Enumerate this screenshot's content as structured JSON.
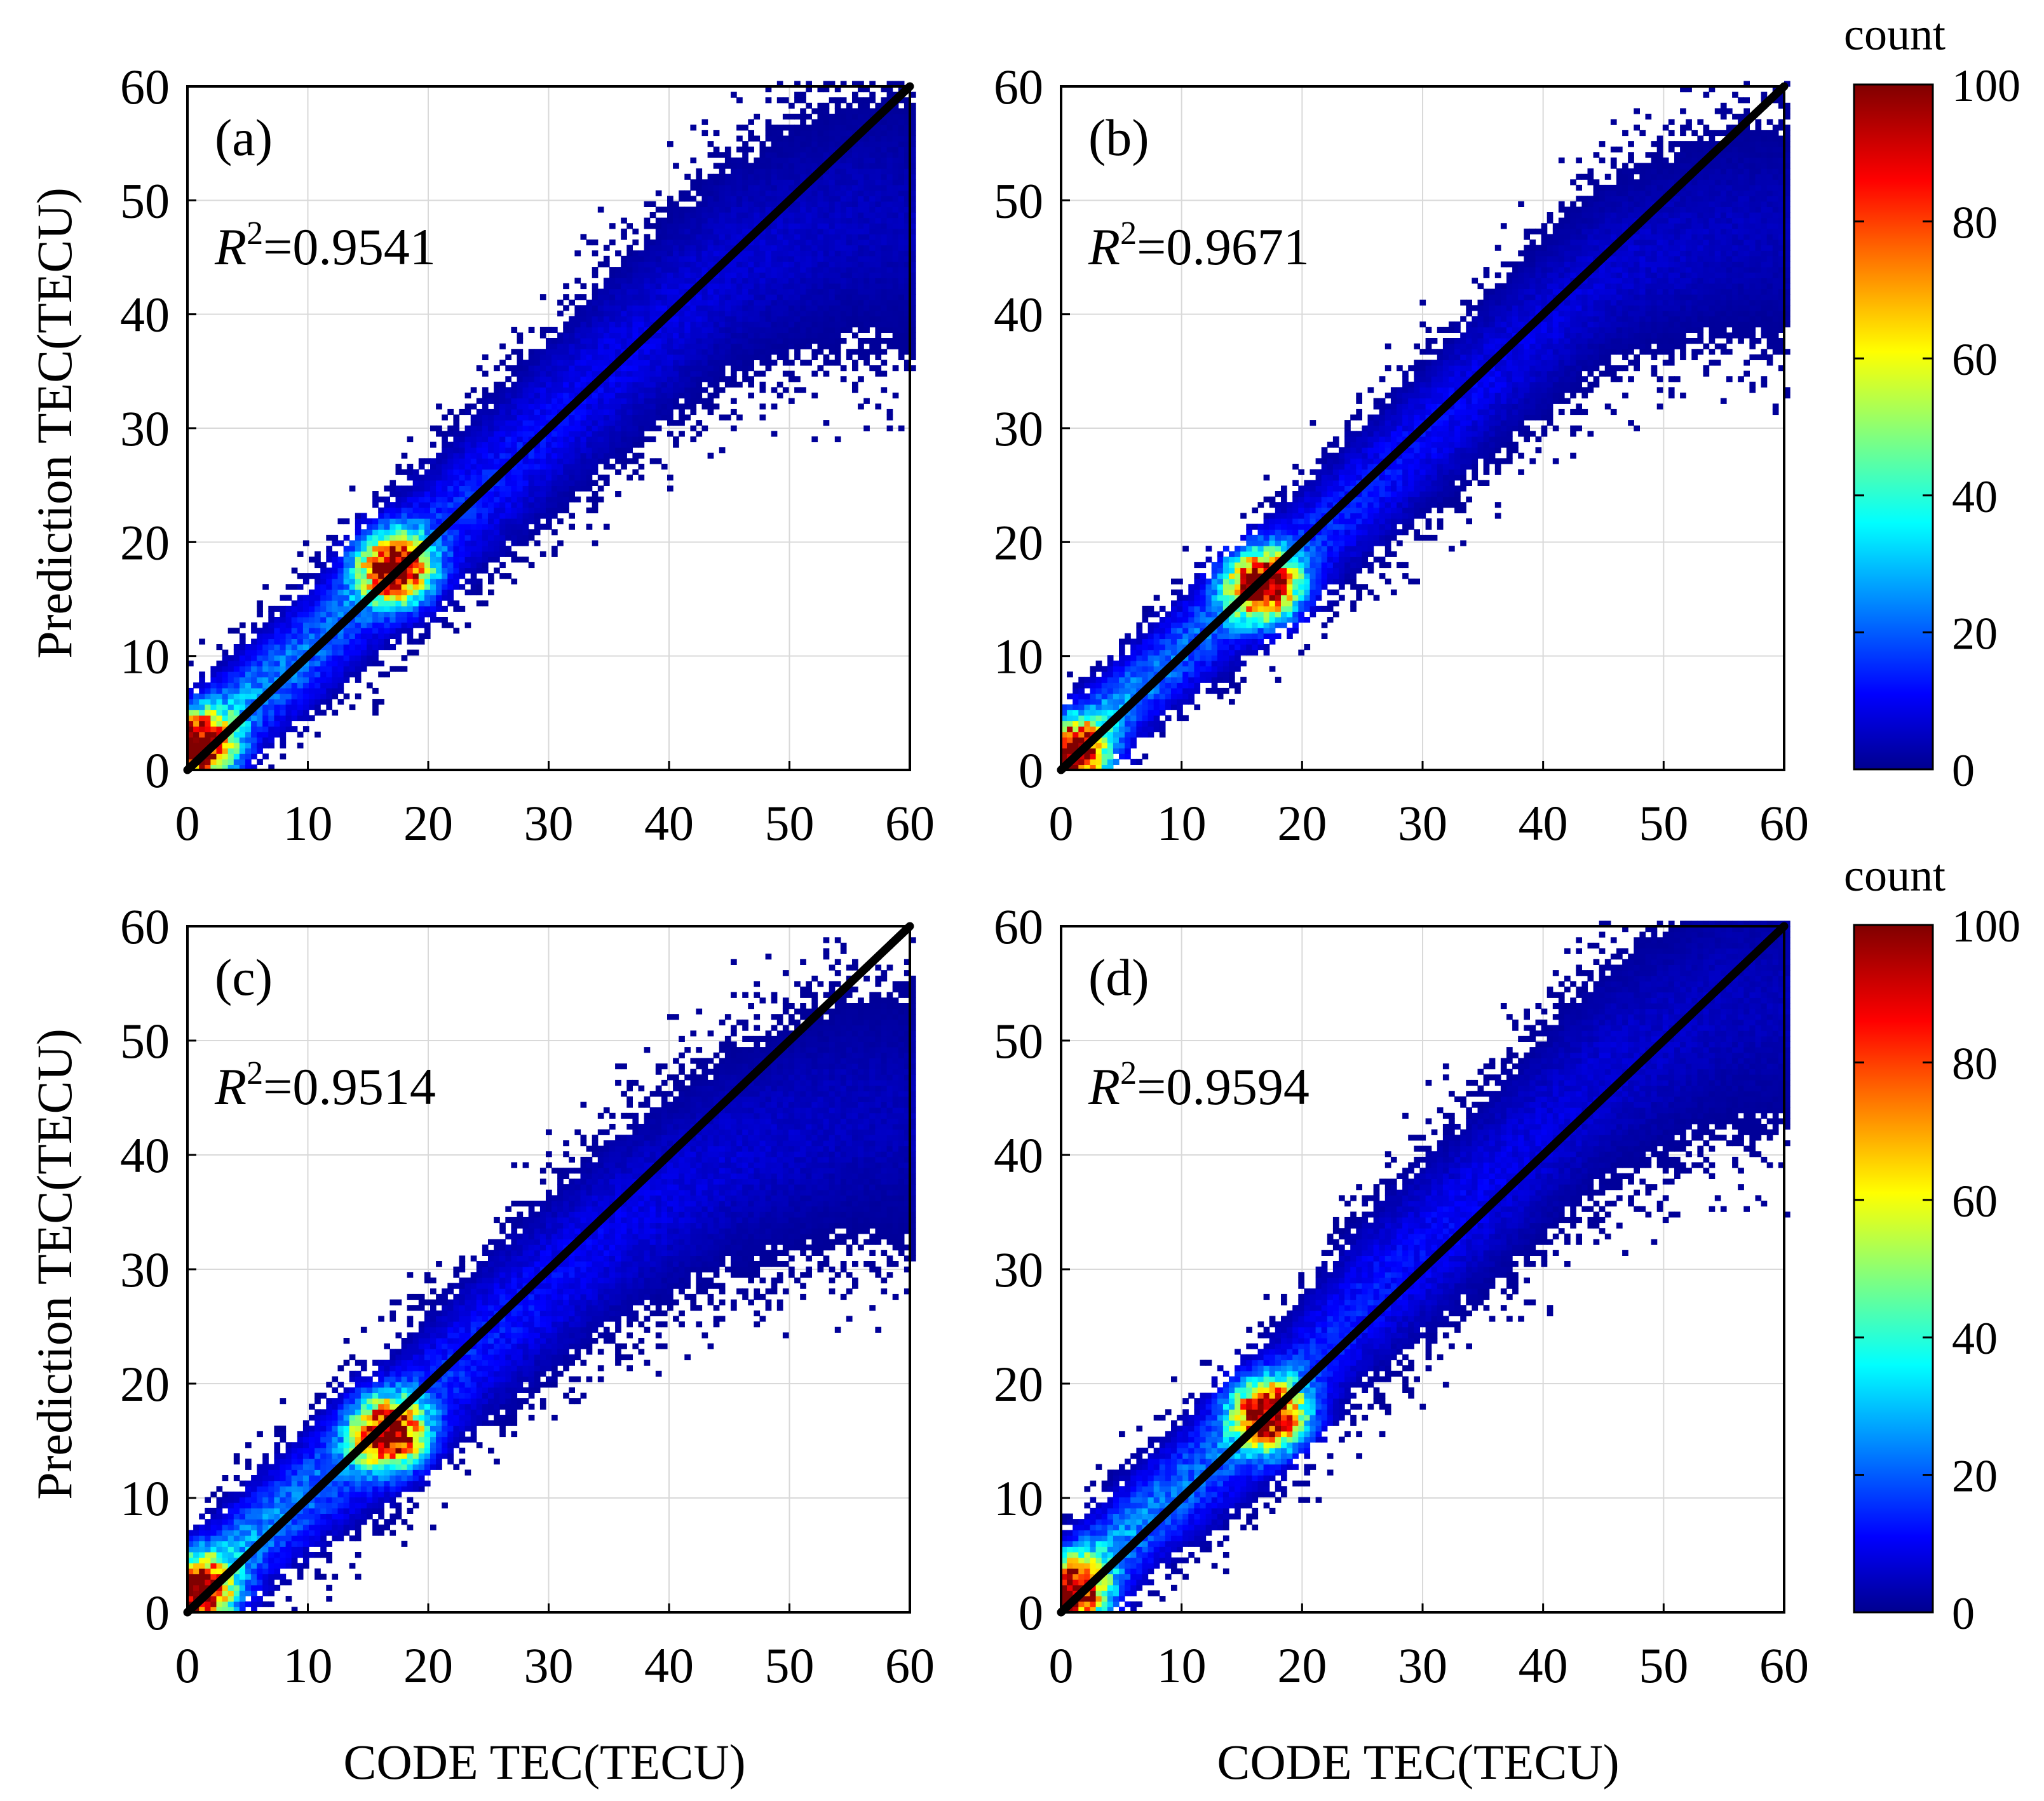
{
  "figure": {
    "y_axis_label": "Prediction TEC(TECU)",
    "x_axis_label": "CODE TEC(TECU)",
    "colorbar_title": "count"
  },
  "chart_data": [
    {
      "type": "heatmap",
      "panel": "(a)",
      "r2_prefix": "R",
      "r2_exp": "2",
      "r2_value": "=0.9541",
      "xlim": [
        0,
        60
      ],
      "ylim": [
        0,
        60
      ],
      "xticks": [
        "0",
        "10",
        "20",
        "30",
        "40",
        "50",
        "60"
      ],
      "yticks": [
        "0",
        "10",
        "20",
        "30",
        "40",
        "50",
        "60"
      ],
      "xlabel": "",
      "ylabel": "Prediction TEC(TECU)",
      "grid": true,
      "reference_line": {
        "x": [
          0,
          60
        ],
        "y": [
          0,
          60
        ]
      },
      "density_model": {
        "spine": [
          [
            0,
            1.5
          ],
          [
            10,
            10.5
          ],
          [
            17,
            17.5
          ],
          [
            25,
            25
          ],
          [
            35,
            35
          ],
          [
            45,
            44
          ],
          [
            55,
            48
          ]
        ],
        "spread": 2.6,
        "hotspots": [
          {
            "x": 17,
            "y": 17.5,
            "peak": 100
          },
          {
            "x": 0.6,
            "y": 1.8,
            "peak": 95
          }
        ]
      }
    },
    {
      "type": "heatmap",
      "panel": "(b)",
      "r2_prefix": "R",
      "r2_exp": "2",
      "r2_value": "=0.9671",
      "xlim": [
        0,
        60
      ],
      "ylim": [
        0,
        60
      ],
      "xticks": [
        "0",
        "10",
        "20",
        "30",
        "40",
        "50",
        "60"
      ],
      "yticks": [
        "0",
        "10",
        "20",
        "30",
        "40",
        "50",
        "60"
      ],
      "xlabel": "",
      "ylabel": "",
      "grid": true,
      "reference_line": {
        "x": [
          0,
          60
        ],
        "y": [
          0,
          60
        ]
      },
      "density_model": {
        "spine": [
          [
            0,
            1
          ],
          [
            10,
            10.5
          ],
          [
            16.5,
            16
          ],
          [
            25,
            24
          ],
          [
            35,
            34
          ],
          [
            45,
            43.5
          ],
          [
            55,
            47
          ]
        ],
        "spread": 2.2,
        "hotspots": [
          {
            "x": 16.5,
            "y": 16,
            "peak": 100
          },
          {
            "x": 0.6,
            "y": 1.2,
            "peak": 95
          }
        ]
      }
    },
    {
      "type": "heatmap",
      "panel": "(c)",
      "r2_prefix": "R",
      "r2_exp": "2",
      "r2_value": "=0.9514",
      "xlim": [
        0,
        60
      ],
      "ylim": [
        0,
        60
      ],
      "xticks": [
        "0",
        "10",
        "20",
        "30",
        "40",
        "50",
        "60"
      ],
      "yticks": [
        "0",
        "10",
        "20",
        "30",
        "40",
        "50",
        "60"
      ],
      "xlabel": "CODE TEC(TECU)",
      "ylabel": "Prediction TEC(TECU)",
      "grid": true,
      "reference_line": {
        "x": [
          0,
          60
        ],
        "y": [
          0,
          60
        ]
      },
      "density_model": {
        "spine": [
          [
            0,
            1.5
          ],
          [
            10,
            10.5
          ],
          [
            16.5,
            15.5
          ],
          [
            25,
            24
          ],
          [
            35,
            33
          ],
          [
            45,
            39.5
          ],
          [
            55,
            43
          ]
        ],
        "spread": 2.6,
        "hotspots": [
          {
            "x": 16.5,
            "y": 15.5,
            "peak": 100
          },
          {
            "x": 0.6,
            "y": 1.5,
            "peak": 95
          }
        ]
      }
    },
    {
      "type": "heatmap",
      "panel": "(d)",
      "r2_prefix": "R",
      "r2_exp": "2",
      "r2_value": "=0.9594",
      "xlim": [
        0,
        60
      ],
      "ylim": [
        0,
        60
      ],
      "xticks": [
        "0",
        "10",
        "20",
        "30",
        "40",
        "50",
        "60"
      ],
      "yticks": [
        "0",
        "10",
        "20",
        "30",
        "40",
        "50",
        "60"
      ],
      "xlabel": "CODE TEC(TECU)",
      "ylabel": "",
      "grid": true,
      "reference_line": {
        "x": [
          0,
          60
        ],
        "y": [
          0,
          60
        ]
      },
      "density_model": {
        "spine": [
          [
            0,
            1.5
          ],
          [
            10,
            11
          ],
          [
            17,
            17
          ],
          [
            25,
            27
          ],
          [
            35,
            36.5
          ],
          [
            45,
            47
          ],
          [
            55,
            53
          ]
        ],
        "spread": 2.6,
        "hotspots": [
          {
            "x": 17,
            "y": 17,
            "peak": 100
          },
          {
            "x": 0.6,
            "y": 1.5,
            "peak": 95
          }
        ]
      }
    }
  ],
  "colorbars": [
    {
      "title": "count",
      "min": 0,
      "max": 100,
      "ticks": [
        "0",
        "20",
        "40",
        "60",
        "80",
        "100"
      ],
      "colormap": "jet"
    },
    {
      "title": "count",
      "min": 0,
      "max": 100,
      "ticks": [
        "0",
        "20",
        "40",
        "60",
        "80",
        "100"
      ],
      "colormap": "jet"
    }
  ]
}
